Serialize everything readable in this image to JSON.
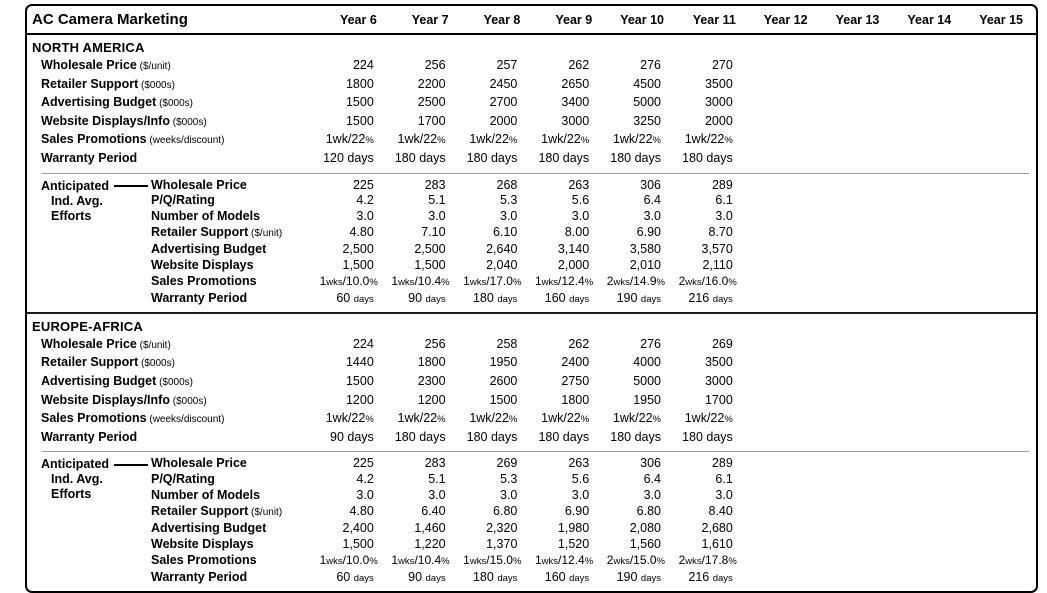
{
  "header": {
    "title": "AC Camera Marketing",
    "year_columns": [
      "Year 6",
      "Year 7",
      "Year 8",
      "Year 9",
      "Year 10",
      "Year 11",
      "Year 12",
      "Year 13",
      "Year 14",
      "Year 15"
    ]
  },
  "sections": [
    {
      "name": "NORTH AMERICA",
      "rows": [
        {
          "label": "Wholesale Price",
          "unit": "($/unit)",
          "fmt": "plain",
          "values": [
            "224",
            "256",
            "257",
            "262",
            "276",
            "270"
          ]
        },
        {
          "label": "Retailer Support",
          "unit": "($000s)",
          "fmt": "plain",
          "values": [
            "1800",
            "2200",
            "2450",
            "2650",
            "4500",
            "3500"
          ]
        },
        {
          "label": "Advertising Budget",
          "unit": "($000s)",
          "fmt": "plain",
          "values": [
            "1500",
            "2500",
            "2700",
            "3400",
            "5000",
            "3000"
          ]
        },
        {
          "label": "Website Displays/Info",
          "unit": "($000s)",
          "fmt": "plain",
          "values": [
            "1500",
            "1700",
            "2000",
            "3000",
            "3250",
            "2000"
          ]
        },
        {
          "label": "Sales Promotions",
          "unit": "(weeks/discount)",
          "fmt": "pct",
          "values": [
            "1wk/22%",
            "1wk/22%",
            "1wk/22%",
            "1wk/22%",
            "1wk/22%",
            "1wk/22%"
          ]
        },
        {
          "label": "Warranty Period",
          "unit": "",
          "fmt": "plain",
          "values": [
            "120 days",
            "180 days",
            "180 days",
            "180 days",
            "180 days",
            "180 days"
          ]
        }
      ],
      "anticipated": {
        "label_lines": [
          "Anticipated",
          "Ind. Avg.",
          "Efforts"
        ],
        "rows": [
          {
            "label": "Wholesale Price",
            "unit": "",
            "fmt": "plain",
            "values": [
              "225",
              "283",
              "268",
              "263",
              "306",
              "289"
            ]
          },
          {
            "label": "P/Q/Rating",
            "unit": "",
            "fmt": "plain",
            "values": [
              "4.2",
              "5.1",
              "5.3",
              "5.6",
              "6.4",
              "6.1"
            ]
          },
          {
            "label": "Number of Models",
            "unit": "",
            "fmt": "plain",
            "values": [
              "3.0",
              "3.0",
              "3.0",
              "3.0",
              "3.0",
              "3.0"
            ]
          },
          {
            "label": "Retailer Support",
            "unit": "($/unit)",
            "fmt": "plain",
            "values": [
              "4.80",
              "7.10",
              "6.10",
              "8.00",
              "6.90",
              "8.70"
            ]
          },
          {
            "label": "Advertising Budget",
            "unit": "",
            "fmt": "plain",
            "values": [
              "2,500",
              "2,500",
              "2,640",
              "3,140",
              "3,580",
              "3,570"
            ]
          },
          {
            "label": "Website Displays",
            "unit": "",
            "fmt": "plain",
            "values": [
              "1,500",
              "1,500",
              "2,040",
              "2,000",
              "2,010",
              "2,110"
            ]
          },
          {
            "label": "Sales Promotions",
            "unit": "",
            "fmt": "promo",
            "values": [
              "1wks/10.0%",
              "1wks/10.4%",
              "1wks/17.0%",
              "1wks/12.4%",
              "2wks/14.9%",
              "2wks/16.0%"
            ]
          },
          {
            "label": "Warranty Period",
            "unit": "",
            "fmt": "days",
            "values": [
              "60 days",
              "90 days",
              "180 days",
              "160 days",
              "190 days",
              "216 days"
            ]
          }
        ]
      }
    },
    {
      "name": "EUROPE-AFRICA",
      "rows": [
        {
          "label": "Wholesale Price",
          "unit": "($/unit)",
          "fmt": "plain",
          "values": [
            "224",
            "256",
            "258",
            "262",
            "276",
            "269"
          ]
        },
        {
          "label": "Retailer Support",
          "unit": "($000s)",
          "fmt": "plain",
          "values": [
            "1440",
            "1800",
            "1950",
            "2400",
            "4000",
            "3500"
          ]
        },
        {
          "label": "Advertising Budget",
          "unit": "($000s)",
          "fmt": "plain",
          "values": [
            "1500",
            "2300",
            "2600",
            "2750",
            "5000",
            "3000"
          ]
        },
        {
          "label": "Website Displays/Info",
          "unit": "($000s)",
          "fmt": "plain",
          "values": [
            "1200",
            "1200",
            "1500",
            "1800",
            "1950",
            "1700"
          ]
        },
        {
          "label": "Sales Promotions",
          "unit": "(weeks/discount)",
          "fmt": "pct",
          "values": [
            "1wk/22%",
            "1wk/22%",
            "1wk/22%",
            "1wk/22%",
            "1wk/22%",
            "1wk/22%"
          ]
        },
        {
          "label": "Warranty Period",
          "unit": "",
          "fmt": "plain",
          "values": [
            "90 days",
            "180 days",
            "180 days",
            "180 days",
            "180 days",
            "180 days"
          ]
        }
      ],
      "anticipated": {
        "label_lines": [
          "Anticipated",
          "Ind. Avg.",
          "Efforts"
        ],
        "rows": [
          {
            "label": "Wholesale Price",
            "unit": "",
            "fmt": "plain",
            "values": [
              "225",
              "283",
              "269",
              "263",
              "306",
              "289"
            ]
          },
          {
            "label": "P/Q/Rating",
            "unit": "",
            "fmt": "plain",
            "values": [
              "4.2",
              "5.1",
              "5.3",
              "5.6",
              "6.4",
              "6.1"
            ]
          },
          {
            "label": "Number of Models",
            "unit": "",
            "fmt": "plain",
            "values": [
              "3.0",
              "3.0",
              "3.0",
              "3.0",
              "3.0",
              "3.0"
            ]
          },
          {
            "label": "Retailer Support",
            "unit": "($/unit)",
            "fmt": "plain",
            "values": [
              "4.80",
              "6.40",
              "6.80",
              "6.90",
              "6.80",
              "8.40"
            ]
          },
          {
            "label": "Advertising Budget",
            "unit": "",
            "fmt": "plain",
            "values": [
              "2,400",
              "1,460",
              "2,320",
              "1,980",
              "2,080",
              "2,680"
            ]
          },
          {
            "label": "Website Displays",
            "unit": "",
            "fmt": "plain",
            "values": [
              "1,500",
              "1,220",
              "1,370",
              "1,520",
              "1,560",
              "1,610"
            ]
          },
          {
            "label": "Sales Promotions",
            "unit": "",
            "fmt": "promo",
            "values": [
              "1wks/10.0%",
              "1wks/10.4%",
              "1wks/15.0%",
              "1wks/12.4%",
              "2wks/15.0%",
              "2wks/17.8%"
            ]
          },
          {
            "label": "Warranty Period",
            "unit": "",
            "fmt": "days",
            "values": [
              "60 days",
              "90 days",
              "180 days",
              "160 days",
              "190 days",
              "216 days"
            ]
          }
        ]
      }
    }
  ]
}
